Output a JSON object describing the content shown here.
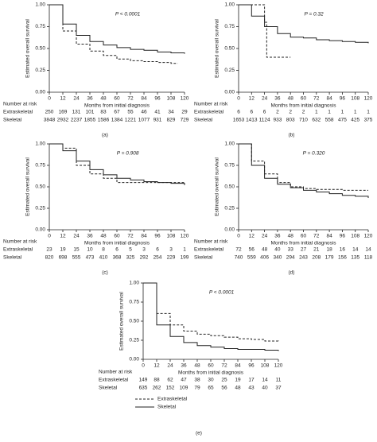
{
  "chart_data": [
    {
      "type": "line",
      "step": true,
      "panel_label": "(a)",
      "annotation": "P < 0.0001",
      "xlabel": "Months from initial diagnosis",
      "ylabel": "Estimated overall survival",
      "xlim": [
        0,
        120
      ],
      "ylim": [
        0,
        1
      ],
      "xticks": [
        0,
        12,
        24,
        36,
        48,
        60,
        72,
        84,
        96,
        108,
        120
      ],
      "yticks": [
        {
          "value": 0,
          "label": "0.00"
        },
        {
          "value": 0.25,
          "label": "0.25"
        },
        {
          "value": 0.5,
          "label": "0.50"
        },
        {
          "value": 0.75,
          "label": "0.75"
        },
        {
          "value": 1,
          "label": "1.00"
        }
      ],
      "series": [
        {
          "dash": true,
          "color": "#222222",
          "x": [
            0,
            12,
            24,
            36,
            48,
            60,
            72,
            84,
            96,
            108,
            114
          ],
          "values": [
            1,
            0.7,
            0.55,
            0.47,
            0.42,
            0.38,
            0.36,
            0.35,
            0.34,
            0.33,
            0.33
          ]
        },
        {
          "dash": false,
          "color": "#222222",
          "x": [
            0,
            12,
            24,
            36,
            48,
            60,
            72,
            84,
            96,
            108,
            120
          ],
          "values": [
            1,
            0.78,
            0.65,
            0.58,
            0.54,
            0.51,
            0.49,
            0.48,
            0.46,
            0.45,
            0.44
          ]
        }
      ],
      "risk_table": {
        "title": "Number at risk",
        "rows": [
          {
            "label": "Extraskeletal",
            "counts": [
              250,
              169,
              131,
              101,
              83,
              67,
              55,
              46,
              41,
              34,
              29
            ]
          },
          {
            "label": "Skeletal",
            "counts": [
              3848,
              2932,
              2237,
              1855,
              1586,
              1384,
              1221,
              1077,
              931,
              829,
              729
            ]
          }
        ]
      }
    },
    {
      "type": "line",
      "step": true,
      "panel_label": "(b)",
      "annotation": "P = 0.32",
      "xlabel": "Months from initial diagnosis",
      "ylabel": "Estimated overall survival",
      "xlim": [
        0,
        120
      ],
      "ylim": [
        0,
        1
      ],
      "xticks": [
        0,
        12,
        24,
        36,
        48,
        60,
        72,
        84,
        96,
        108,
        120
      ],
      "yticks": [
        {
          "value": 0,
          "label": "0.00"
        },
        {
          "value": 0.25,
          "label": "0.25"
        },
        {
          "value": 0.5,
          "label": "0.50"
        },
        {
          "value": 0.75,
          "label": "0.75"
        },
        {
          "value": 1,
          "label": "1.00"
        }
      ],
      "series": [
        {
          "dash": true,
          "color": "#222222",
          "x": [
            0,
            24,
            26,
            48
          ],
          "values": [
            1,
            0.8,
            0.4,
            0.4
          ]
        },
        {
          "dash": false,
          "color": "#222222",
          "x": [
            0,
            12,
            24,
            36,
            48,
            60,
            72,
            84,
            96,
            108,
            120
          ],
          "values": [
            1,
            0.87,
            0.75,
            0.67,
            0.63,
            0.62,
            0.6,
            0.59,
            0.58,
            0.57,
            0.56
          ]
        }
      ],
      "risk_table": {
        "title": "Number at risk",
        "rows": [
          {
            "label": "Extraskeletal",
            "counts": [
              6,
              6,
              6,
              2,
              2,
              2,
              1,
              1,
              1,
              1,
              1
            ]
          },
          {
            "label": "Skeletal",
            "counts": [
              1653,
              1413,
              1124,
              933,
              803,
              710,
              632,
              558,
              475,
              425,
              375
            ]
          }
        ]
      }
    },
    {
      "type": "line",
      "step": true,
      "panel_label": "(c)",
      "annotation": "P = 0.908",
      "xlabel": "Months from initial diagnosis",
      "ylabel": "Estimated overall survival",
      "xlim": [
        0,
        120
      ],
      "ylim": [
        0,
        1
      ],
      "xticks": [
        0,
        12,
        24,
        36,
        48,
        60,
        72,
        84,
        96,
        108,
        120
      ],
      "yticks": [
        {
          "value": 0,
          "label": "0.00"
        },
        {
          "value": 0.25,
          "label": "0.25"
        },
        {
          "value": 0.5,
          "label": "0.50"
        },
        {
          "value": 0.75,
          "label": "0.75"
        },
        {
          "value": 1,
          "label": "1.00"
        }
      ],
      "series": [
        {
          "dash": true,
          "color": "#222222",
          "x": [
            0,
            12,
            24,
            36,
            48,
            60,
            72,
            84,
            96,
            108,
            120
          ],
          "values": [
            1,
            0.95,
            0.75,
            0.65,
            0.6,
            0.55,
            0.55,
            0.55,
            0.55,
            0.55,
            0.53
          ]
        },
        {
          "dash": false,
          "color": "#222222",
          "x": [
            0,
            12,
            24,
            36,
            48,
            60,
            72,
            84,
            96,
            108,
            120
          ],
          "values": [
            1,
            0.92,
            0.8,
            0.7,
            0.64,
            0.6,
            0.58,
            0.56,
            0.55,
            0.54,
            0.52
          ]
        }
      ],
      "risk_table": {
        "title": "Number at risk",
        "rows": [
          {
            "label": "Extraskeletal",
            "counts": [
              23,
              19,
              15,
              10,
              8,
              6,
              5,
              3,
              6,
              3,
              1
            ]
          },
          {
            "label": "Skeletal",
            "counts": [
              820,
              698,
              555,
              473,
              410,
              368,
              325,
              292,
              254,
              229,
              199
            ]
          }
        ]
      }
    },
    {
      "type": "line",
      "step": true,
      "panel_label": "(d)",
      "annotation": "P = 0.320",
      "xlabel": "Months from initial diagnosis",
      "ylabel": "Estimated overall survival",
      "xlim": [
        0,
        120
      ],
      "ylim": [
        0,
        1
      ],
      "xticks": [
        0,
        12,
        24,
        36,
        48,
        60,
        72,
        84,
        96,
        108,
        120
      ],
      "yticks": [
        {
          "value": 0,
          "label": "0.00"
        },
        {
          "value": 0.25,
          "label": "0.25"
        },
        {
          "value": 0.5,
          "label": "0.50"
        },
        {
          "value": 0.75,
          "label": "0.75"
        },
        {
          "value": 1,
          "label": "1.00"
        }
      ],
      "series": [
        {
          "dash": true,
          "color": "#222222",
          "x": [
            0,
            12,
            24,
            36,
            48,
            60,
            72,
            84,
            96,
            108,
            120
          ],
          "values": [
            1,
            0.8,
            0.65,
            0.55,
            0.5,
            0.48,
            0.47,
            0.47,
            0.46,
            0.46,
            0.46
          ]
        },
        {
          "dash": false,
          "color": "#222222",
          "x": [
            0,
            12,
            24,
            36,
            48,
            60,
            72,
            84,
            96,
            108,
            120
          ],
          "values": [
            1,
            0.75,
            0.6,
            0.53,
            0.49,
            0.46,
            0.44,
            0.42,
            0.4,
            0.39,
            0.37
          ]
        }
      ],
      "risk_table": {
        "title": "Number at risk",
        "rows": [
          {
            "label": "Extraskeletal",
            "counts": [
              72,
              56,
              48,
              40,
              33,
              27,
              21,
              18,
              16,
              14,
              14
            ]
          },
          {
            "label": "Skeletal",
            "counts": [
              740,
              559,
              406,
              340,
              294,
              243,
              208,
              179,
              156,
              135,
              118
            ]
          }
        ]
      }
    },
    {
      "type": "line",
      "step": true,
      "panel_label": "(e)",
      "annotation": "P < 0.0001",
      "xlabel": "Months from initial diagnosis",
      "ylabel": "Estimated overall survival",
      "xlim": [
        0,
        120
      ],
      "ylim": [
        0,
        1
      ],
      "xticks": [
        0,
        12,
        24,
        36,
        48,
        60,
        72,
        84,
        96,
        108,
        120
      ],
      "yticks": [
        {
          "value": 0,
          "label": "0.00"
        },
        {
          "value": 0.25,
          "label": "0.25"
        },
        {
          "value": 0.5,
          "label": "0.50"
        },
        {
          "value": 0.75,
          "label": "0.75"
        },
        {
          "value": 1,
          "label": "1.00"
        }
      ],
      "legend": "bottom",
      "series": [
        {
          "name": "Extraskeletal",
          "dash": true,
          "color": "#222222",
          "x": [
            0,
            12,
            24,
            36,
            48,
            60,
            72,
            84,
            96,
            108,
            120
          ],
          "values": [
            1,
            0.6,
            0.45,
            0.37,
            0.33,
            0.31,
            0.29,
            0.27,
            0.26,
            0.24,
            0.23
          ]
        },
        {
          "name": "Skeletal",
          "dash": false,
          "color": "#222222",
          "x": [
            0,
            12,
            24,
            36,
            48,
            60,
            72,
            84,
            96,
            108,
            120
          ],
          "values": [
            1,
            0.45,
            0.3,
            0.22,
            0.18,
            0.16,
            0.14,
            0.13,
            0.13,
            0.12,
            0.11
          ]
        }
      ],
      "risk_table": {
        "title": "Number at risk",
        "rows": [
          {
            "label": "Extraskeletal",
            "counts": [
              149,
              88,
              62,
              47,
              38,
              30,
              25,
              19,
              17,
              14,
              11
            ]
          },
          {
            "label": "Skeletal",
            "counts": [
              635,
              262,
              152,
              109,
              79,
              65,
              56,
              48,
              43,
              40,
              37
            ]
          }
        ]
      }
    }
  ]
}
